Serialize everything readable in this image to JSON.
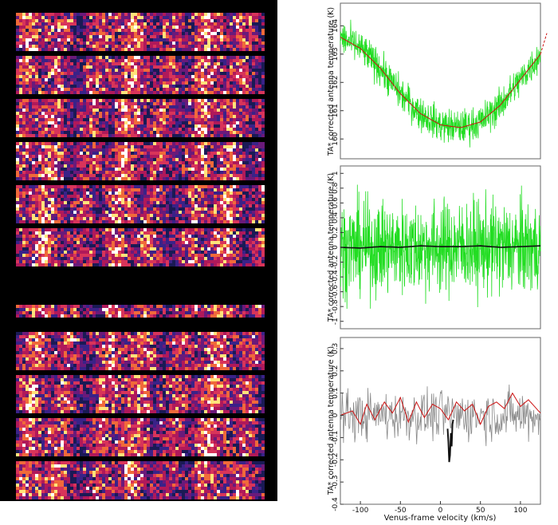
{
  "colors": {
    "noise": "#22dd22",
    "fit": "#cc1111",
    "mean": "#111111",
    "residual": "#888888",
    "heatmap_low": "#1a1a55",
    "heatmap_mid": "#b0195a",
    "heatmap_high": "#ffe37a"
  },
  "heatmap": {
    "type": "heatmap",
    "block_count": 11,
    "gap_after_block": 6
  },
  "chart_data": [
    {
      "type": "line",
      "panel": "top",
      "ylabel": "TA*  corrected antenna temperature (K)",
      "xlim": [
        -125,
        125
      ],
      "ylim": [
        159.3,
        164.8
      ],
      "yticks": [
        160,
        161,
        162,
        163,
        164
      ],
      "ytick_labels": [
        "160",
        "161",
        "162",
        "163",
        "164"
      ],
      "series": [
        {
          "kind": "noise-band",
          "x": [
            -125,
            -100,
            -75,
            -50,
            -25,
            0,
            25,
            50,
            75,
            100,
            125
          ],
          "values": [
            163.6,
            163.2,
            162.5,
            161.6,
            160.9,
            160.5,
            160.4,
            160.6,
            161.2,
            162.1,
            163.0
          ],
          "spread": 0.55
        },
        {
          "kind": "fit",
          "x": [
            -125,
            -100,
            -75,
            -50,
            -25,
            0,
            25,
            50,
            75,
            100,
            125
          ],
          "values": [
            163.6,
            163.2,
            162.5,
            161.6,
            160.9,
            160.5,
            160.4,
            160.6,
            161.2,
            162.1,
            163.0
          ],
          "extension": {
            "x": [
              125,
              133
            ],
            "values": [
              163.0,
              163.4
            ]
          }
        }
      ]
    },
    {
      "type": "line",
      "panel": "middle",
      "ylabel": "TA*  corrected antenna temperature (K)",
      "xlim": [
        -125,
        125
      ],
      "ylim": [
        -1.1,
        1.1
      ],
      "yticks": [
        -1,
        -0.8,
        -0.6,
        -0.4,
        -0.2,
        0,
        0.2,
        0.4,
        0.6,
        0.8,
        1
      ],
      "ytick_labels": [
        "-1",
        "-0.8",
        "-0.6",
        "-0.4",
        "-0.2",
        "0",
        "0.2",
        "0.4",
        "0.6",
        "0.8",
        "1"
      ],
      "series": [
        {
          "kind": "noise-band",
          "x": [
            -125,
            125
          ],
          "values": [
            0,
            0
          ],
          "spread": 0.62
        },
        {
          "kind": "mean",
          "x": [
            -125,
            -100,
            -75,
            -50,
            -25,
            0,
            25,
            50,
            75,
            100,
            125
          ],
          "values": [
            0,
            -0.01,
            0.01,
            0,
            0.02,
            0.01,
            0.01,
            0.02,
            0,
            0.01,
            0.02
          ]
        }
      ]
    },
    {
      "type": "line",
      "panel": "bottom",
      "ylabel": "TA*  corrected antenna temperature (K)",
      "xlabel": "Venus-frame velocity (km/s)",
      "xlim": [
        -125,
        125
      ],
      "ylim": [
        -0.4,
        0.35
      ],
      "yticks": [
        -0.4,
        -0.3,
        -0.2,
        -0.1,
        0,
        0.1,
        0.2,
        0.3
      ],
      "ytick_labels": [
        "-0.4",
        "-0.3",
        "-0.2",
        "-0.1",
        "0",
        "0.1",
        "0.2",
        "0.3"
      ],
      "xticks": [
        -100,
        -50,
        0,
        50,
        100
      ],
      "xtick_labels": [
        "-100",
        "-50",
        "0",
        "50",
        "100"
      ],
      "series": [
        {
          "kind": "residual",
          "x": [
            -125,
            125
          ],
          "spread": 0.11
        },
        {
          "kind": "fit",
          "x": [
            -125,
            -110,
            -100,
            -92,
            -82,
            -70,
            -60,
            -50,
            -40,
            -30,
            -20,
            -10,
            0,
            10,
            20,
            30,
            40,
            50,
            60,
            70,
            80,
            90,
            100,
            110,
            125
          ],
          "values": [
            0,
            0.02,
            -0.04,
            0.05,
            -0.02,
            0.06,
            0.01,
            0.08,
            -0.03,
            0.06,
            -0.01,
            0.05,
            0.03,
            -0.02,
            0.06,
            0.02,
            0.05,
            -0.04,
            0.04,
            0.06,
            0.03,
            0.1,
            0.04,
            0.07,
            0.01
          ]
        },
        {
          "kind": "feature",
          "x": [
            9,
            10,
            11,
            12,
            13,
            14,
            15,
            16
          ],
          "values": [
            -0.06,
            -0.12,
            -0.21,
            -0.18,
            -0.08,
            -0.14,
            -0.04,
            -0.02
          ]
        }
      ]
    }
  ]
}
